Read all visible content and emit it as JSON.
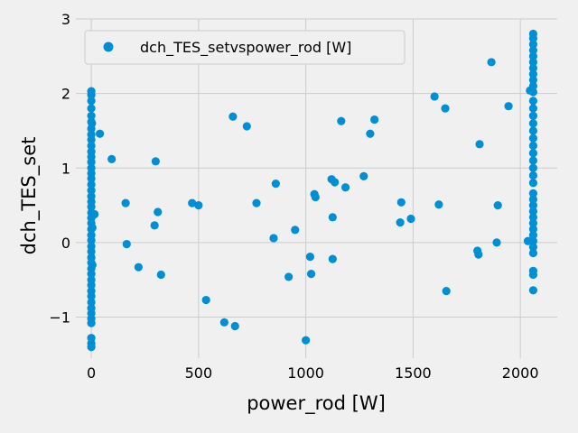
{
  "chart_data": {
    "type": "scatter",
    "title": "",
    "xlabel": "power_rod [W]",
    "ylabel": "dch_TES_set",
    "xlim": [
      -72,
      2172
    ],
    "ylim": [
      -1.55,
      3.0
    ],
    "xticks": [
      0,
      500,
      1000,
      1500,
      2000
    ],
    "yticks": [
      -1,
      0,
      1,
      2,
      3
    ],
    "grid": true,
    "legend_position": "top-left",
    "series": [
      {
        "name": "dch_TES_setvspower_rod [W]",
        "color": "#008fd5",
        "points": [
          [
            0,
            2.03
          ],
          [
            0,
            1.98
          ],
          [
            0,
            1.9
          ],
          [
            0,
            1.8
          ],
          [
            0,
            1.7
          ],
          [
            0,
            1.62
          ],
          [
            0,
            1.53
          ],
          [
            0,
            1.45
          ],
          [
            0,
            1.38
          ],
          [
            0,
            1.3
          ],
          [
            0,
            1.22
          ],
          [
            0,
            1.15
          ],
          [
            0,
            1.08
          ],
          [
            0,
            1.0
          ],
          [
            0,
            0.93
          ],
          [
            0,
            0.86
          ],
          [
            0,
            0.78
          ],
          [
            0,
            0.7
          ],
          [
            0,
            0.62
          ],
          [
            0,
            0.55
          ],
          [
            0,
            0.48
          ],
          [
            0,
            0.4
          ],
          [
            0,
            0.33
          ],
          [
            0,
            0.26
          ],
          [
            0,
            0.18
          ],
          [
            0,
            0.1
          ],
          [
            0,
            0.03
          ],
          [
            0,
            -0.05
          ],
          [
            0,
            -0.12
          ],
          [
            0,
            -0.2
          ],
          [
            0,
            -0.27
          ],
          [
            0,
            -0.35
          ],
          [
            0,
            -0.42
          ],
          [
            0,
            -0.5
          ],
          [
            0,
            -0.57
          ],
          [
            0,
            -0.65
          ],
          [
            0,
            -0.72
          ],
          [
            0,
            -0.8
          ],
          [
            0,
            -0.88
          ],
          [
            0,
            -0.95
          ],
          [
            0,
            -1.02
          ],
          [
            0,
            -1.08
          ],
          [
            0,
            -1.28
          ],
          [
            0,
            -1.35
          ],
          [
            0,
            -1.4
          ],
          [
            5,
            0.2
          ],
          [
            5,
            -0.3
          ],
          [
            3,
            1.6
          ],
          [
            15,
            0.38
          ],
          [
            40,
            1.46
          ],
          [
            95,
            1.12
          ],
          [
            160,
            0.53
          ],
          [
            165,
            -0.02
          ],
          [
            220,
            -0.33
          ],
          [
            295,
            0.23
          ],
          [
            300,
            1.09
          ],
          [
            310,
            0.41
          ],
          [
            325,
            -0.43
          ],
          [
            470,
            0.53
          ],
          [
            500,
            0.5
          ],
          [
            535,
            -0.77
          ],
          [
            620,
            -1.07
          ],
          [
            660,
            1.69
          ],
          [
            670,
            -1.12
          ],
          [
            725,
            1.56
          ],
          [
            770,
            0.53
          ],
          [
            850,
            0.06
          ],
          [
            860,
            0.79
          ],
          [
            920,
            -0.46
          ],
          [
            950,
            0.17
          ],
          [
            1000,
            -1.31
          ],
          [
            1020,
            -0.19
          ],
          [
            1025,
            -0.42
          ],
          [
            1040,
            0.65
          ],
          [
            1045,
            0.61
          ],
          [
            1120,
            0.85
          ],
          [
            1125,
            -0.22
          ],
          [
            1125,
            0.34
          ],
          [
            1135,
            0.81
          ],
          [
            1165,
            1.63
          ],
          [
            1185,
            0.74
          ],
          [
            1270,
            0.89
          ],
          [
            1300,
            1.46
          ],
          [
            1320,
            1.65
          ],
          [
            1440,
            0.27
          ],
          [
            1445,
            0.54
          ],
          [
            1490,
            0.32
          ],
          [
            1600,
            1.96
          ],
          [
            1620,
            0.51
          ],
          [
            1650,
            1.8
          ],
          [
            1655,
            -0.65
          ],
          [
            1800,
            -0.11
          ],
          [
            1805,
            -0.16
          ],
          [
            1810,
            1.32
          ],
          [
            1865,
            2.42
          ],
          [
            1890,
            0.0
          ],
          [
            1895,
            0.5
          ],
          [
            1945,
            1.83
          ],
          [
            2035,
            0.02
          ],
          [
            2045,
            2.04
          ],
          [
            2060,
            2.8
          ],
          [
            2060,
            2.74
          ],
          [
            2060,
            2.66
          ],
          [
            2060,
            2.58
          ],
          [
            2060,
            2.5
          ],
          [
            2060,
            2.42
          ],
          [
            2060,
            2.34
          ],
          [
            2060,
            2.26
          ],
          [
            2060,
            2.18
          ],
          [
            2060,
            2.1
          ],
          [
            2060,
            2.02
          ],
          [
            2060,
            1.9
          ],
          [
            2060,
            1.8
          ],
          [
            2060,
            1.7
          ],
          [
            2060,
            1.6
          ],
          [
            2060,
            1.5
          ],
          [
            2060,
            1.4
          ],
          [
            2060,
            1.3
          ],
          [
            2060,
            1.2
          ],
          [
            2060,
            1.1
          ],
          [
            2060,
            1.0
          ],
          [
            2060,
            0.9
          ],
          [
            2060,
            0.8
          ],
          [
            2060,
            0.66
          ],
          [
            2060,
            0.58
          ],
          [
            2060,
            0.5
          ],
          [
            2060,
            0.42
          ],
          [
            2060,
            0.34
          ],
          [
            2060,
            0.26
          ],
          [
            2060,
            0.18
          ],
          [
            2060,
            0.1
          ],
          [
            2060,
            0.02
          ],
          [
            2060,
            -0.06
          ],
          [
            2060,
            -0.14
          ],
          [
            2060,
            -0.38
          ],
          [
            2060,
            -0.43
          ],
          [
            2060,
            -0.64
          ]
        ]
      }
    ]
  }
}
